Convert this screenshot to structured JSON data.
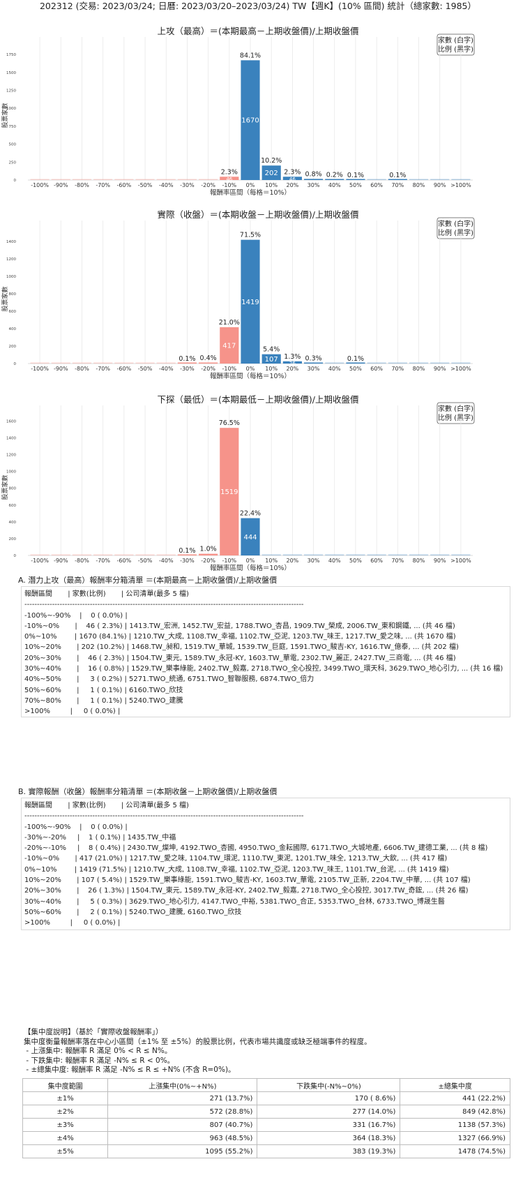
{
  "page_title": "202312 (交易: 2023/03/24; 日曆: 2023/03/20–2023/03/24) TW【週K】(10% 區間) 統計（總家數: 1985）",
  "legend_box": [
    "家數 (白字)",
    "比例 (黑字)"
  ],
  "chart_data": [
    {
      "type": "bar",
      "title": "上攻（最高）＝(本期最高－上期收盤價)/上期收盤價",
      "xlabel": "報酬率區間（每格＝10%）",
      "ylabel": "股票家數",
      "categories": [
        "-100%",
        "-90%",
        "-80%",
        "-70%",
        "-60%",
        "-50%",
        "-40%",
        "-30%",
        "-20%",
        "-10%",
        "0%",
        "10%",
        "20%",
        "30%",
        "40%",
        "50%",
        "60%",
        "70%",
        "80%",
        "90%",
        ">100%"
      ],
      "values": [
        0,
        0,
        0,
        0,
        0,
        0,
        0,
        0,
        0,
        46,
        1670,
        202,
        46,
        16,
        3,
        1,
        0,
        1,
        0,
        0,
        0
      ],
      "pct_labels": [
        "",
        "",
        "",
        "",
        "",
        "",
        "",
        "",
        "",
        "2.3%",
        "84.1%",
        "10.2%",
        "2.3%",
        "0.8%",
        "0.2%",
        "0.1%",
        "",
        "0.1%",
        "",
        "",
        ""
      ],
      "count_labels": [
        "",
        "",
        "",
        "",
        "",
        "",
        "",
        "",
        "",
        "46",
        "1670",
        "202",
        "46",
        "16",
        "3",
        "1",
        "",
        "1",
        "",
        "",
        ""
      ],
      "yticks": [
        0,
        250,
        500,
        750,
        1000,
        1250,
        1500,
        1750
      ],
      "ylim": [
        0,
        1800
      ]
    },
    {
      "type": "bar",
      "title": "實際（收盤）＝(本期收盤－上期收盤價)/上期收盤價",
      "xlabel": "報酬率區間（每格＝10%）",
      "ylabel": "股票家數",
      "categories": [
        "-100%",
        "-90%",
        "-80%",
        "-70%",
        "-60%",
        "-50%",
        "-40%",
        "-30%",
        "-20%",
        "-10%",
        "0%",
        "10%",
        "20%",
        "30%",
        "40%",
        "50%",
        "60%",
        "70%",
        "80%",
        "90%",
        ">100%"
      ],
      "values": [
        0,
        0,
        0,
        0,
        0,
        0,
        0,
        1,
        8,
        417,
        1419,
        107,
        26,
        5,
        0,
        2,
        0,
        0,
        0,
        0,
        0
      ],
      "pct_labels": [
        "",
        "",
        "",
        "",
        "",
        "",
        "",
        "0.1%",
        "0.4%",
        "21.0%",
        "71.5%",
        "5.4%",
        "1.3%",
        "0.3%",
        "",
        "0.1%",
        "",
        "",
        "",
        "",
        ""
      ],
      "count_labels": [
        "",
        "",
        "",
        "",
        "",
        "",
        "",
        "1",
        "8",
        "417",
        "1419",
        "107",
        "26",
        "5",
        "",
        "2",
        "",
        "",
        "",
        "",
        ""
      ],
      "yticks": [
        0,
        200,
        400,
        600,
        800,
        1000,
        1200,
        1400
      ],
      "ylim": [
        0,
        1480
      ]
    },
    {
      "type": "bar",
      "title": "下探（最低）＝(本期最低－上期收盤價)/上期收盤價",
      "xlabel": "報酬率區間（每格＝10%）",
      "ylabel": "股票家數",
      "categories": [
        "-100%",
        "-90%",
        "-80%",
        "-70%",
        "-60%",
        "-50%",
        "-40%",
        "-30%",
        "-20%",
        "-10%",
        "0%",
        "10%",
        "20%",
        "30%",
        "40%",
        "50%",
        "60%",
        "70%",
        "80%",
        "90%",
        ">100%"
      ],
      "values": [
        0,
        0,
        0,
        0,
        0,
        0,
        0,
        1,
        20,
        1519,
        444,
        0,
        0,
        0,
        0,
        0,
        0,
        0,
        0,
        0,
        0
      ],
      "pct_labels": [
        "",
        "",
        "",
        "",
        "",
        "",
        "",
        "0.1%",
        "1.0%",
        "76.5%",
        "22.4%",
        "",
        "",
        "",
        "",
        "",
        "",
        "",
        "",
        "",
        ""
      ],
      "count_labels": [
        "",
        "",
        "",
        "",
        "",
        "",
        "",
        "1",
        "20",
        "1519",
        "444",
        "",
        "",
        "",
        "",
        "",
        "",
        "",
        "",
        "",
        ""
      ],
      "yticks": [
        0,
        200,
        400,
        600,
        800,
        1000,
        1200,
        1400,
        1600
      ],
      "ylim": [
        0,
        1620
      ]
    }
  ],
  "colors": {
    "positive": "#3a82bd",
    "negative": "#f6938a",
    "grid": "#e8e8e8"
  },
  "section_a": {
    "title": "A. 潛力上攻（最高）報酬率分箱清單 ＝(本期最高－上期收盤價)/上期收盤價",
    "lines": [
      "報酬區間       | 家數(比例)       | 公司清單(最多 5 檔)",
      "---------------------------------------------------------------------------------------------------------------",
      "-100%~-90%    |    0 ( 0.0%) |",
      "-10%~0%       |    46 ( 2.3%) | 1413.TW_宏洲, 1452.TW_宏益, 1788.TWO_杏昌, 1909.TW_榮成, 2006.TW_東和鋼鐵, ... (共 46 檔)",
      "0%~10%        | 1670 (84.1%) | 1210.TW_大成, 1108.TW_幸福, 1102.TW_亞泥, 1203.TW_味王, 1217.TW_愛之味, ... (共 1670 檔)",
      "10%~20%       | 202 (10.2%) | 1468.TW_昶和, 1519.TW_華城, 1539.TW_巨庭, 1591.TWO_駿吉-KY, 1616.TW_億泰, ... (共 202 檔)",
      "20%~30%       |    46 ( 2.3%) | 1504.TW_東元, 1589.TW_永冠-KY, 1603.TW_華電, 2302.TW_麗正, 2427.TW_三商電, ... (共 46 檔)",
      "30%~40%       |    16 ( 0.8%) | 1529.TW_樂事綠能, 2402.TW_毅嘉, 2718.TWO_全心投控, 3499.TWO_環天科, 3629.TWO_地心引力, ... (共 16 檔)",
      "40%~50%       |     3 ( 0.2%) | 5271.TWO_統通, 6751.TWO_智聯服務, 6874.TWO_倍力",
      "50%~60%       |     1 ( 0.1%) | 6160.TWO_欣技",
      "70%~80%       |     1 ( 0.1%) | 5240.TWO_建騰",
      ">100%         |     0 ( 0.0%) |"
    ]
  },
  "section_b": {
    "title": "B. 實際報酬（收盤）報酬率分箱清單 ＝(本期收盤－上期收盤價)/上期收盤價",
    "lines": [
      "報酬區間       | 家數(比例)       | 公司清單(最多 5 檔)",
      "---------------------------------------------------------------------------------------------------------------",
      "-100%~-90%    |    0 ( 0.0%) |",
      "-30%~-20%     |    1 ( 0.1%) | 1435.TW_中福",
      "-20%~-10%     |    8 ( 0.4%) | 2430.TW_燦坤, 4192.TWO_杏國, 4950.TWO_金耘國際, 6171.TWO_大城地產, 6606.TW_建德工業, ... (共 8 檔)",
      "-10%~0%       | 417 (21.0%) | 1217.TW_愛之味, 1104.TW_環泥, 1110.TW_東泥, 1201.TW_味全, 1213.TW_大飲, ... (共 417 檔)",
      "0%~10%        | 1419 (71.5%) | 1210.TW_大成, 1108.TW_幸福, 1102.TW_亞泥, 1203.TW_味王, 1101.TW_台泥, ... (共 1419 檔)",
      "10%~20%       | 107 ( 5.4%) | 1529.TW_樂事綠能, 1591.TWO_駿吉-KY, 1603.TW_華電, 2105.TW_正新, 2204.TW_中華, ... (共 107 檔)",
      "20%~30%       |    26 ( 1.3%) | 1504.TW_東元, 1589.TW_永冠-KY, 2402.TW_毅嘉, 2718.TWO_全心投控, 3017.TW_奇鋐, ... (共 26 檔)",
      "30%~40%       |     5 ( 0.3%) | 3629.TWO_地心引力, 4147.TWO_中裕, 5381.TWO_合正, 5353.TWO_台林, 6733.TWO_博晟生醫",
      "50%~60%       |     2 ( 0.1%) | 5240.TWO_建騰, 6160.TWO_欣技",
      ">100%         |     0 ( 0.0%) |"
    ]
  },
  "concentration": {
    "lines": [
      "【集中度說明】（基於「實際收盤報酬率」）",
      "集中度衡量報酬率落在中心小區間（±1% 至 ±5%）的股票比例，代表市場共識度或缺乏極端事件的程度。",
      " - 上漲集中: 報酬率 R 滿足 0% < R ≤ N%。",
      " - 下跌集中: 報酬率 R 滿足 -N% ≤ R < 0%。",
      " - ±總集中度: 報酬率 R 滿足 -N% ≤ R ≤ +N% (不含 R=0%)。"
    ],
    "headers": [
      "集中度範圍",
      "上漲集中(0%~+N%)",
      "下跌集中(-N%~0%)",
      "±總集中度"
    ],
    "rows": [
      [
        "±1%",
        "271 (13.7%)",
        "170 ( 8.6%)",
        "441 (22.2%)"
      ],
      [
        "±2%",
        "572 (28.8%)",
        "277 (14.0%)",
        "849 (42.8%)"
      ],
      [
        "±3%",
        "807 (40.7%)",
        "331 (16.7%)",
        "1138 (57.3%)"
      ],
      [
        "±4%",
        "963 (48.5%)",
        "364 (18.3%)",
        "1327 (66.9%)"
      ],
      [
        "±5%",
        "1095 (55.2%)",
        "383 (19.3%)",
        "1478 (74.5%)"
      ]
    ]
  }
}
